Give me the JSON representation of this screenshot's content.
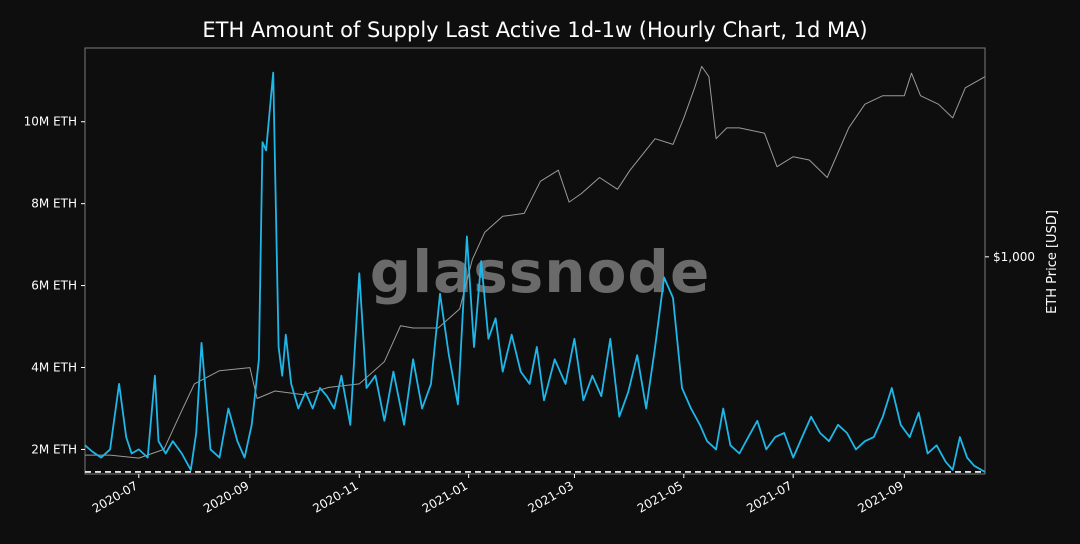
{
  "chart_data": {
    "type": "line",
    "title": "ETH Amount of Supply Last Active 1d-1w (Hourly Chart, 1d MA)",
    "watermark": "glassnode",
    "x_range": [
      "2020-06-01",
      "2021-10-16"
    ],
    "x_ticks": [
      "2020-07",
      "2020-09",
      "2020-11",
      "2021-01",
      "2021-03",
      "2021-05",
      "2021-07",
      "2021-09"
    ],
    "y_left": {
      "unit": "ETH",
      "range": [
        1400000,
        11800000
      ],
      "ticks": [
        {
          "value": 2000000,
          "label": "2M ETH"
        },
        {
          "value": 4000000,
          "label": "4M ETH"
        },
        {
          "value": 6000000,
          "label": "6M ETH"
        },
        {
          "value": 8000000,
          "label": "8M ETH"
        },
        {
          "value": 10000000,
          "label": "10M ETH"
        }
      ],
      "baseline": 1450000
    },
    "y_right": {
      "label": "ETH Price [USD]",
      "scale": "log",
      "range": [
        200,
        4700
      ],
      "ticks": [
        {
          "value": 1000,
          "label": "$1,000"
        }
      ]
    },
    "colors": {
      "supply": "#1fb6e8",
      "price": "#9a9a9a",
      "baseline": "#ffffff"
    },
    "series": [
      {
        "key": "supply",
        "dates": [
          "2020-06-01",
          "2020-06-05",
          "2020-06-10",
          "2020-06-15",
          "2020-06-20",
          "2020-06-24",
          "2020-06-27",
          "2020-07-01",
          "2020-07-06",
          "2020-07-10",
          "2020-07-12",
          "2020-07-16",
          "2020-07-20",
          "2020-07-25",
          "2020-07-30",
          "2020-08-02",
          "2020-08-05",
          "2020-08-10",
          "2020-08-15",
          "2020-08-20",
          "2020-08-25",
          "2020-08-29",
          "2020-09-02",
          "2020-09-06",
          "2020-09-08",
          "2020-09-10",
          "2020-09-14",
          "2020-09-17",
          "2020-09-19",
          "2020-09-21",
          "2020-09-24",
          "2020-09-28",
          "2020-10-02",
          "2020-10-06",
          "2020-10-10",
          "2020-10-14",
          "2020-10-18",
          "2020-10-22",
          "2020-10-27",
          "2020-11-01",
          "2020-11-05",
          "2020-11-10",
          "2020-11-15",
          "2020-11-20",
          "2020-11-26",
          "2020-12-01",
          "2020-12-06",
          "2020-12-11",
          "2020-12-16",
          "2020-12-21",
          "2020-12-26",
          "2020-12-31",
          "2021-01-04",
          "2021-01-08",
          "2021-01-12",
          "2021-01-16",
          "2021-01-20",
          "2021-01-25",
          "2021-01-30",
          "2021-02-04",
          "2021-02-08",
          "2021-02-12",
          "2021-02-18",
          "2021-02-24",
          "2021-03-01",
          "2021-03-06",
          "2021-03-11",
          "2021-03-16",
          "2021-03-21",
          "2021-03-26",
          "2021-03-31",
          "2021-04-05",
          "2021-04-10",
          "2021-04-15",
          "2021-04-20",
          "2021-04-25",
          "2021-04-30",
          "2021-05-05",
          "2021-05-10",
          "2021-05-14",
          "2021-05-19",
          "2021-05-23",
          "2021-05-27",
          "2021-06-01",
          "2021-06-06",
          "2021-06-11",
          "2021-06-16",
          "2021-06-21",
          "2021-06-26",
          "2021-07-01",
          "2021-07-06",
          "2021-07-11",
          "2021-07-16",
          "2021-07-21",
          "2021-07-26",
          "2021-07-31",
          "2021-08-05",
          "2021-08-10",
          "2021-08-15",
          "2021-08-20",
          "2021-08-25",
          "2021-08-30",
          "2021-09-04",
          "2021-09-09",
          "2021-09-14",
          "2021-09-19",
          "2021-09-24",
          "2021-09-28",
          "2021-10-02",
          "2021-10-06",
          "2021-10-10",
          "2021-10-14",
          "2021-10-16"
        ],
        "values": [
          2100000,
          1950000,
          1800000,
          2000000,
          3600000,
          2300000,
          1900000,
          2000000,
          1800000,
          3800000,
          2200000,
          1900000,
          2200000,
          1900000,
          1500000,
          2400000,
          4600000,
          2000000,
          1800000,
          3000000,
          2200000,
          1800000,
          2600000,
          4200000,
          9500000,
          9300000,
          11200000,
          4500000,
          3800000,
          4800000,
          3600000,
          3000000,
          3400000,
          3000000,
          3500000,
          3300000,
          3000000,
          3800000,
          2600000,
          6300000,
          3500000,
          3800000,
          2700000,
          3900000,
          2600000,
          4200000,
          3000000,
          3600000,
          5800000,
          4300000,
          3100000,
          7200000,
          4500000,
          6600000,
          4700000,
          5200000,
          3900000,
          4800000,
          3900000,
          3600000,
          4500000,
          3200000,
          4200000,
          3600000,
          4700000,
          3200000,
          3800000,
          3300000,
          4700000,
          2800000,
          3400000,
          4300000,
          3000000,
          4500000,
          6200000,
          5700000,
          3500000,
          3000000,
          2600000,
          2200000,
          2000000,
          3000000,
          2100000,
          1900000,
          2300000,
          2700000,
          2000000,
          2300000,
          2400000,
          1800000,
          2300000,
          2800000,
          2400000,
          2200000,
          2600000,
          2400000,
          2000000,
          2200000,
          2300000,
          2800000,
          3500000,
          2600000,
          2300000,
          2900000,
          1900000,
          2100000,
          1700000,
          1500000,
          2300000,
          1800000,
          1600000,
          1500000,
          1450000
        ]
      },
      {
        "key": "price",
        "dates": [
          "2020-06-01",
          "2020-06-15",
          "2020-07-01",
          "2020-07-15",
          "2020-07-25",
          "2020-08-01",
          "2020-08-15",
          "2020-09-01",
          "2020-09-05",
          "2020-09-15",
          "2020-10-01",
          "2020-10-15",
          "2020-11-01",
          "2020-11-15",
          "2020-11-24",
          "2020-12-01",
          "2020-12-15",
          "2020-12-27",
          "2021-01-03",
          "2021-01-10",
          "2021-01-20",
          "2021-02-01",
          "2021-02-10",
          "2021-02-20",
          "2021-02-26",
          "2021-03-05",
          "2021-03-15",
          "2021-03-25",
          "2021-04-01",
          "2021-04-15",
          "2021-04-25",
          "2021-05-01",
          "2021-05-07",
          "2021-05-11",
          "2021-05-15",
          "2021-05-19",
          "2021-05-25",
          "2021-06-01",
          "2021-06-15",
          "2021-06-22",
          "2021-07-01",
          "2021-07-10",
          "2021-07-20",
          "2021-08-01",
          "2021-08-10",
          "2021-08-20",
          "2021-09-01",
          "2021-09-05",
          "2021-09-10",
          "2021-09-20",
          "2021-09-28",
          "2021-10-05",
          "2021-10-16"
        ],
        "values": [
          230,
          230,
          225,
          240,
          320,
          390,
          430,
          440,
          350,
          370,
          360,
          380,
          390,
          460,
          600,
          590,
          590,
          680,
          980,
          1200,
          1350,
          1380,
          1750,
          1900,
          1500,
          1600,
          1800,
          1650,
          1900,
          2400,
          2300,
          2800,
          3500,
          4100,
          3800,
          2400,
          2600,
          2600,
          2500,
          1950,
          2100,
          2050,
          1800,
          2600,
          3100,
          3300,
          3300,
          3900,
          3300,
          3100,
          2800,
          3500,
          3800
        ]
      }
    ]
  }
}
